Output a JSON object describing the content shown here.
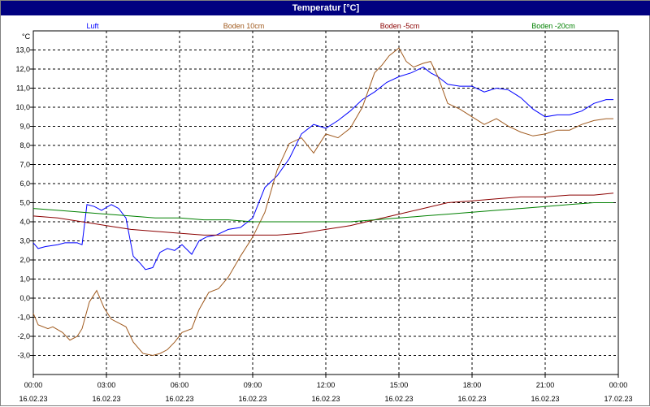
{
  "window": {
    "title": "Temperatur [°C]"
  },
  "colors": {
    "title_bg": "#000080",
    "luft": "#0000ff",
    "boden10": "#a05a1e",
    "boden5": "#8b0000",
    "boden20": "#008000"
  },
  "chart_data": {
    "type": "line",
    "title": "Temperatur [°C]",
    "ylabel": "°C",
    "ylim": [
      -4.0,
      14.0
    ],
    "grid": true,
    "legend_placement": "top",
    "y_ticks": [
      "13,0",
      "12,0",
      "11,0",
      "10,0",
      "9,0",
      "8,0",
      "7,0",
      "6,0",
      "5,0",
      "4,0",
      "3,0",
      "2,0",
      "1,0",
      "0,0",
      "-1,0",
      "-2,0",
      "-3,0"
    ],
    "x_ticks": [
      {
        "time": "00:00",
        "date": "16.02.23"
      },
      {
        "time": "03:00",
        "date": "16.02.23"
      },
      {
        "time": "06:00",
        "date": "16.02.23"
      },
      {
        "time": "09:00",
        "date": "16.02.23"
      },
      {
        "time": "12:00",
        "date": "16.02.23"
      },
      {
        "time": "15:00",
        "date": "16.02.23"
      },
      {
        "time": "18:00",
        "date": "16.02.23"
      },
      {
        "time": "21:00",
        "date": "16.02.23"
      },
      {
        "time": "00:00",
        "date": "17.02.23"
      }
    ],
    "x_unit": "hours since 16.02.23 00:00",
    "series": [
      {
        "name": "Luft",
        "color": "#0000ff",
        "x": [
          0,
          0.2,
          0.5,
          1,
          1.3,
          1.8,
          2,
          2.2,
          2.5,
          2.8,
          3.2,
          3.5,
          3.8,
          4.1,
          4.4,
          4.6,
          4.9,
          5.2,
          5.5,
          5.8,
          6.1,
          6.5,
          6.8,
          7.1,
          7.5,
          8,
          8.5,
          9,
          9.5,
          10,
          10.5,
          11,
          11.5,
          12,
          12.5,
          13,
          13.5,
          14,
          14.5,
          15,
          15.5,
          16,
          16.3,
          16.6,
          17,
          17.5,
          18,
          18.5,
          19,
          19.5,
          20,
          20.5,
          21,
          21.5,
          22,
          22.5,
          23,
          23.5,
          23.8
        ],
        "y": [
          2.9,
          2.6,
          2.7,
          2.8,
          2.9,
          2.9,
          2.8,
          4.9,
          4.8,
          4.6,
          4.9,
          4.7,
          4.2,
          2.2,
          1.8,
          1.5,
          1.6,
          2.4,
          2.6,
          2.5,
          2.8,
          2.3,
          3,
          3.2,
          3.3,
          3.6,
          3.7,
          4.2,
          5.8,
          6.4,
          7.3,
          8.6,
          9.1,
          8.9,
          9.3,
          9.8,
          10.4,
          10.8,
          11.3,
          11.6,
          11.8,
          12.1,
          11.8,
          11.6,
          11.2,
          11.1,
          11.1,
          10.8,
          11,
          10.9,
          10.5,
          9.9,
          9.5,
          9.6,
          9.6,
          9.8,
          10.2,
          10.4,
          10.4
        ]
      },
      {
        "name": "Boden 10cm",
        "color": "#a05a1e",
        "x": [
          0,
          0.2,
          0.6,
          0.8,
          1.2,
          1.5,
          1.8,
          2,
          2.3,
          2.6,
          2.9,
          3.2,
          3.5,
          3.8,
          4.1,
          4.5,
          4.9,
          5.2,
          5.5,
          5.8,
          6.1,
          6.5,
          6.8,
          7.2,
          7.6,
          8,
          8.5,
          9,
          9.5,
          10,
          10.5,
          11,
          11.5,
          12,
          12.5,
          13,
          13.5,
          14,
          14.3,
          14.6,
          15,
          15.3,
          15.6,
          16,
          16.3,
          16.6,
          17,
          17.5,
          18,
          18.5,
          19,
          19.5,
          20,
          20.5,
          21,
          21.5,
          22,
          22.5,
          23,
          23.5,
          23.8
        ],
        "y": [
          -0.8,
          -1.4,
          -1.6,
          -1.5,
          -1.8,
          -2.2,
          -2,
          -1.6,
          -0.2,
          0.4,
          -0.5,
          -1.1,
          -1.3,
          -1.5,
          -2.3,
          -2.9,
          -3,
          -2.9,
          -2.7,
          -2.3,
          -1.8,
          -1.6,
          -0.6,
          0.3,
          0.5,
          1.1,
          2.2,
          3.2,
          4.5,
          6.7,
          8.1,
          8.4,
          7.6,
          8.6,
          8.4,
          8.9,
          10,
          11.8,
          12.2,
          12.7,
          13.1,
          12.4,
          12.1,
          12.3,
          12.4,
          11.6,
          10.2,
          9.9,
          9.5,
          9.1,
          9.4,
          9,
          8.7,
          8.5,
          8.6,
          8.8,
          8.8,
          9.1,
          9.3,
          9.4,
          9.4
        ]
      },
      {
        "name": "Boden -5cm",
        "color": "#8b0000",
        "x": [
          0,
          1,
          2,
          3,
          4,
          5,
          6,
          7,
          8,
          9,
          10,
          11,
          12,
          13,
          14,
          15,
          16,
          17,
          18,
          19,
          20,
          21,
          22,
          23,
          23.8
        ],
        "y": [
          4.3,
          4.2,
          4.0,
          3.8,
          3.6,
          3.5,
          3.4,
          3.3,
          3.3,
          3.3,
          3.3,
          3.4,
          3.6,
          3.8,
          4.1,
          4.4,
          4.7,
          5.0,
          5.1,
          5.2,
          5.3,
          5.3,
          5.4,
          5.4,
          5.5
        ]
      },
      {
        "name": "Boden -20cm",
        "color": "#008000",
        "x": [
          0,
          1,
          2,
          3,
          4,
          5,
          6,
          7,
          8,
          9,
          10,
          11,
          12,
          13,
          14,
          15,
          16,
          17,
          18,
          19,
          20,
          21,
          22,
          23,
          23.8
        ],
        "y": [
          4.7,
          4.6,
          4.5,
          4.4,
          4.3,
          4.2,
          4.2,
          4.1,
          4.1,
          4.0,
          4.0,
          4.0,
          4.0,
          4.0,
          4.1,
          4.2,
          4.3,
          4.4,
          4.5,
          4.6,
          4.7,
          4.8,
          4.9,
          5.0,
          5.0
        ]
      }
    ]
  }
}
